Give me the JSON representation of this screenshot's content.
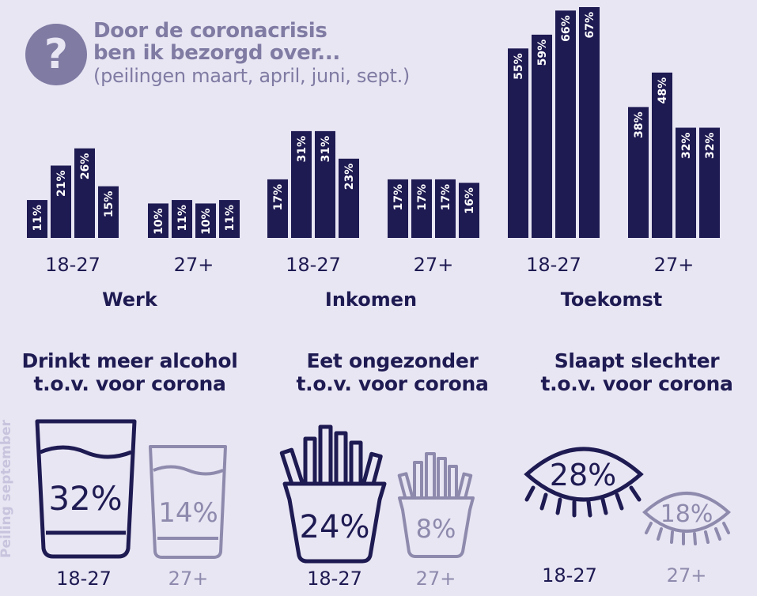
{
  "title": {
    "icon": "question-mark-icon",
    "line1": "Door de coronacrisis",
    "line2": "ben ik bezorgd over...",
    "subtitle": "(peilingen maart, april, juni, sept.)"
  },
  "colors": {
    "background": "#e8e6f3",
    "bar": "#1e1a52",
    "accent": "#7f7ba3",
    "light": "#8e8aad"
  },
  "chart_data": {
    "type": "bar",
    "series": [
      "maart",
      "april",
      "juni",
      "sept."
    ],
    "groups": [
      {
        "category": "Werk",
        "subgroups": [
          {
            "label": "18-27",
            "values": [
              11,
              21,
              26,
              15
            ]
          },
          {
            "label": "27+",
            "values": [
              10,
              11,
              10,
              11
            ]
          }
        ]
      },
      {
        "category": "Inkomen",
        "subgroups": [
          {
            "label": "18-27",
            "values": [
              17,
              31,
              31,
              23
            ]
          },
          {
            "label": "27+",
            "values": [
              17,
              17,
              17,
              16
            ]
          }
        ]
      },
      {
        "category": "Toekomst",
        "subgroups": [
          {
            "label": "18-27",
            "values": [
              55,
              59,
              66,
              67
            ]
          },
          {
            "label": "27+",
            "values": [
              38,
              48,
              32,
              32
            ]
          }
        ]
      }
    ],
    "value_suffix": "%",
    "ylim": [
      0,
      67
    ]
  },
  "bottom": [
    {
      "title1": "Drinkt meer alcohol",
      "title2": "t.o.v. voor corona",
      "icon": "glass-icon",
      "young": {
        "label": "18-27",
        "value": "32%"
      },
      "old": {
        "label": "27+",
        "value": "14%"
      }
    },
    {
      "title1": "Eet ongezonder",
      "title2": "t.o.v. voor corona",
      "icon": "fries-icon",
      "young": {
        "label": "18-27",
        "value": "24%"
      },
      "old": {
        "label": "27+",
        "value": "8%"
      }
    },
    {
      "title1": "Slaapt slechter",
      "title2": "t.o.v. voor corona",
      "icon": "eye-icon",
      "young": {
        "label": "18-27",
        "value": "28%"
      },
      "old": {
        "label": "27+",
        "value": "18%"
      }
    }
  ],
  "side_note": "Peiling september"
}
